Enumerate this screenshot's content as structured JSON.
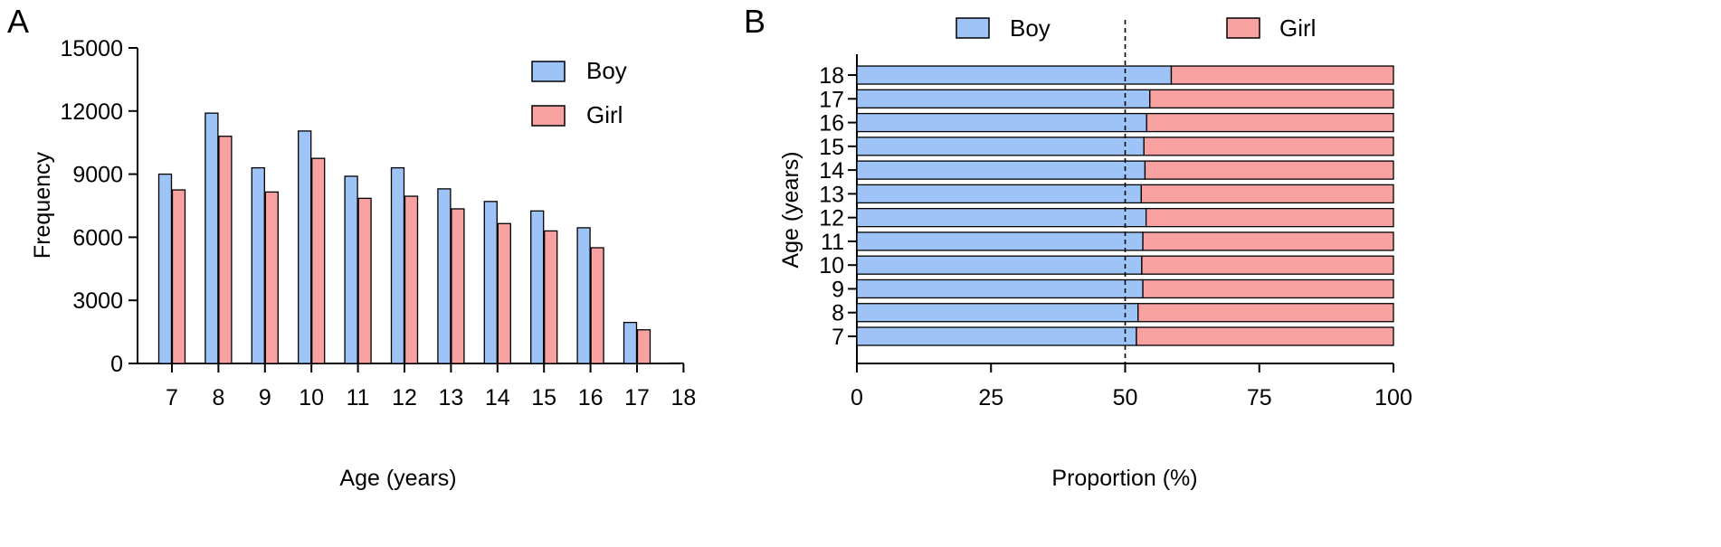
{
  "colors": {
    "boy": "#9dc3f7",
    "girl": "#f7a1a1",
    "axis": "#000000",
    "reference_line": "#000000"
  },
  "chart_data": [
    {
      "panel": "A",
      "type": "bar",
      "title": "",
      "xlabel": "Age (years)",
      "ylabel": "Frequency",
      "categories": [
        "7",
        "8",
        "9",
        "10",
        "11",
        "12",
        "13",
        "14",
        "15",
        "16",
        "17",
        "18"
      ],
      "series": [
        {
          "name": "Boy",
          "values": [
            9000,
            11900,
            9300,
            11050,
            8900,
            9300,
            8300,
            7700,
            7250,
            6450,
            1950,
            20
          ]
        },
        {
          "name": "Girl",
          "values": [
            8250,
            10800,
            8150,
            9750,
            7850,
            7950,
            7350,
            6650,
            6300,
            5500,
            1600,
            0
          ]
        }
      ],
      "ylim": [
        0,
        15000
      ],
      "yticks": [
        "0",
        "3000",
        "6000",
        "9000",
        "12000",
        "15000"
      ],
      "legend_position": "top-right",
      "grid": false
    },
    {
      "panel": "B",
      "type": "bar",
      "orientation": "horizontal",
      "stacked": true,
      "title": "",
      "xlabel": "Proportion (%)",
      "ylabel": "Age (years)",
      "categories": [
        "7",
        "8",
        "9",
        "10",
        "11",
        "12",
        "13",
        "14",
        "15",
        "16",
        "17",
        "18"
      ],
      "series": [
        {
          "name": "Boy",
          "values": [
            52.1,
            52.4,
            53.3,
            53.1,
            53.3,
            53.9,
            53.0,
            53.7,
            53.5,
            54.0,
            54.6,
            58.6
          ]
        },
        {
          "name": "Girl",
          "values": [
            47.9,
            47.6,
            46.7,
            46.9,
            46.7,
            46.1,
            47.0,
            46.3,
            46.5,
            46.0,
            45.4,
            41.4
          ]
        }
      ],
      "xlim": [
        0,
        100
      ],
      "xticks": [
        "0",
        "25",
        "50",
        "75",
        "100"
      ],
      "reference_line_x": 50,
      "legend_position": "top",
      "grid": false
    }
  ]
}
